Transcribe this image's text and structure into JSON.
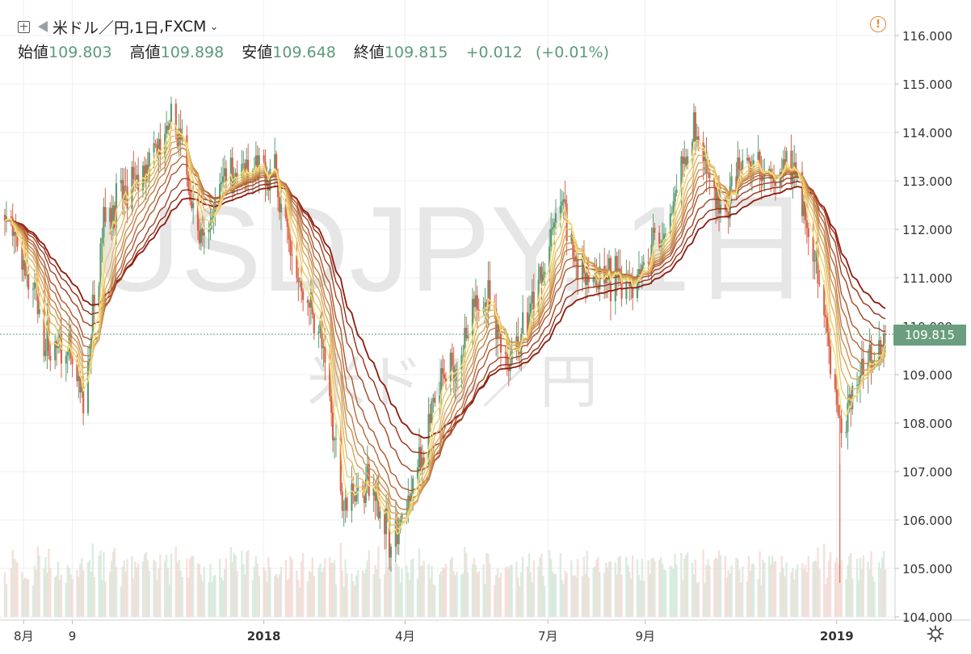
{
  "header": {
    "symbol": "米ドル／円",
    "interval": "1日",
    "exchange": "FXCM",
    "separator": ", ",
    "open_label": "始値",
    "open": "109.803",
    "high_label": "高値",
    "high": "109.898",
    "low_label": "安値",
    "low": "109.648",
    "close_label": "終値",
    "close": "109.815",
    "change": "+0.012",
    "change_pct": "(+0.01%)"
  },
  "watermark": {
    "main": "USDJPY, 1日",
    "sub": "米ドル／円"
  },
  "price_tag": "109.815",
  "icons": {
    "add": "plus-square-icon",
    "flag": "flag-icon",
    "dropdown": "chevron-down-icon",
    "warning": "exclamation-circle-icon",
    "settings": "gear-icon"
  },
  "colors": {
    "up": "#5c9c77",
    "down": "#d9624c",
    "ribbon_fast": "#f6e07a",
    "ribbon_slow": "#8e1a0e",
    "tag": "#6a9e7e"
  },
  "chart_data": {
    "type": "candlestick",
    "y_axis": {
      "min": 104.0,
      "max": 116.0,
      "ticks": [
        "104.000",
        "105.000",
        "106.000",
        "107.000",
        "108.000",
        "109.000",
        "110.000",
        "111.000",
        "112.000",
        "113.000",
        "114.000",
        "115.000",
        "116.000"
      ]
    },
    "x_axis_labels": [
      {
        "label": "8月",
        "bold": false
      },
      {
        "label": "9",
        "bold": false
      },
      {
        "label": "2018",
        "bold": true
      },
      {
        "label": "4月",
        "bold": false
      },
      {
        "label": "7月",
        "bold": false
      },
      {
        "label": "9月",
        "bold": false
      },
      {
        "label": "2019",
        "bold": true
      }
    ],
    "x_label_dates": [
      "2017-08",
      "2017-09",
      "2018-01",
      "2018-04",
      "2018-07",
      "2018-09",
      "2019-01"
    ],
    "last_close": 109.815,
    "price_path": [
      [
        "2017-07-20",
        112.3
      ],
      [
        "2017-08-08",
        110.7
      ],
      [
        "2017-08-15",
        109.6
      ],
      [
        "2017-08-28",
        109.5
      ],
      [
        "2017-09-08",
        108.3
      ],
      [
        "2017-09-21",
        112.3
      ],
      [
        "2017-10-05",
        112.7
      ],
      [
        "2017-10-20",
        113.3
      ],
      [
        "2017-11-06",
        114.2
      ],
      [
        "2017-11-24",
        111.5
      ],
      [
        "2017-12-08",
        113.4
      ],
      [
        "2017-12-20",
        113.0
      ],
      [
        "2018-01-08",
        113.2
      ],
      [
        "2018-01-22",
        111.0
      ],
      [
        "2018-02-05",
        110.0
      ],
      [
        "2018-02-20",
        106.5
      ],
      [
        "2018-03-08",
        106.8
      ],
      [
        "2018-03-26",
        105.5
      ],
      [
        "2018-04-10",
        107.2
      ],
      [
        "2018-04-25",
        108.8
      ],
      [
        "2018-05-10",
        109.7
      ],
      [
        "2018-05-22",
        110.8
      ],
      [
        "2018-06-05",
        109.3
      ],
      [
        "2018-06-20",
        110.2
      ],
      [
        "2018-07-10",
        112.6
      ],
      [
        "2018-07-20",
        111.2
      ],
      [
        "2018-08-10",
        110.9
      ],
      [
        "2018-08-28",
        111.2
      ],
      [
        "2018-09-15",
        112.0
      ],
      [
        "2018-10-02",
        114.0
      ],
      [
        "2018-10-20",
        112.2
      ],
      [
        "2018-11-05",
        113.4
      ],
      [
        "2018-11-20",
        112.9
      ],
      [
        "2018-12-05",
        113.4
      ],
      [
        "2018-12-20",
        111.0
      ],
      [
        "2019-01-03",
        107.9
      ],
      [
        "2019-01-15",
        108.9
      ],
      [
        "2019-01-25",
        109.6
      ],
      [
        "2019-02-01",
        109.8
      ]
    ],
    "flash_crash": {
      "date": "2019-01-03",
      "low": 104.7
    },
    "ema_ribbon_periods": [
      5,
      8,
      11,
      14,
      17,
      20,
      25,
      30,
      40,
      50,
      60
    ]
  }
}
